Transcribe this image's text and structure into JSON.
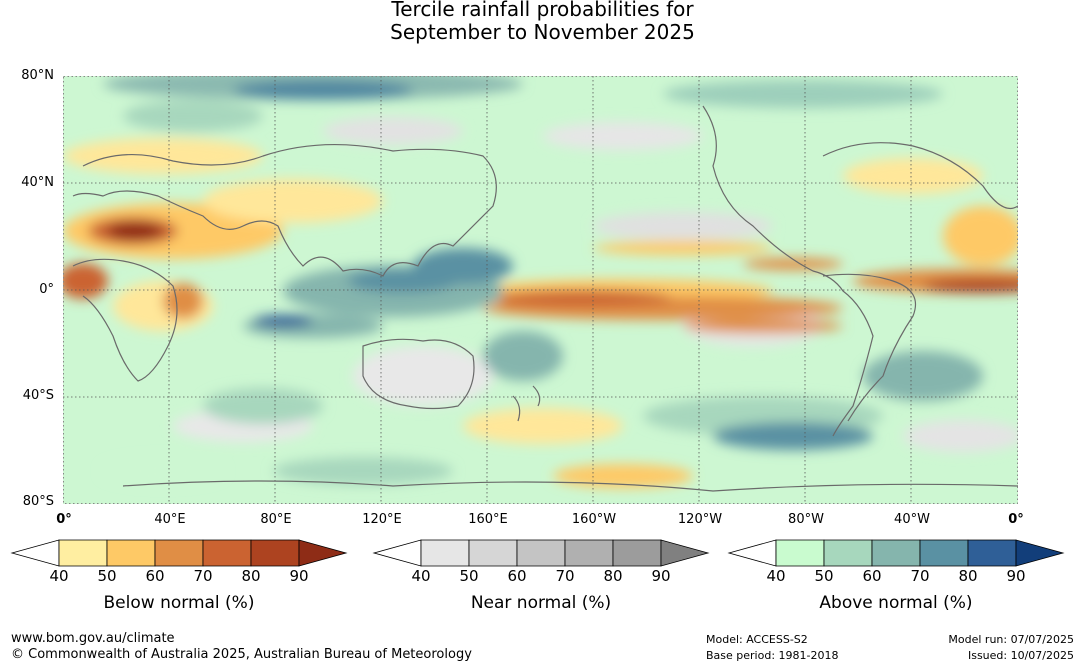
{
  "title": {
    "line1": "Tercile rainfall probabilities for",
    "line2": "September to November 2025"
  },
  "map": {
    "lat_labels": [
      "80°N",
      "40°N",
      "0°",
      "40°S",
      "80°S"
    ],
    "lon_labels": [
      "0°",
      "40°E",
      "80°E",
      "120°E",
      "160°E",
      "160°W",
      "120°W",
      "80°W",
      "40°W",
      "0°"
    ]
  },
  "legends": [
    {
      "title": "Below normal (%)",
      "ticks": [
        "40",
        "50",
        "60",
        "70",
        "80",
        "90"
      ],
      "colors": [
        "#ffffff",
        "#ffeea1",
        "#fec966",
        "#e08e45",
        "#cb6331",
        "#ad4320",
        "#8e2c16"
      ]
    },
    {
      "title": "Near normal (%)",
      "ticks": [
        "40",
        "50",
        "60",
        "70",
        "80",
        "90"
      ],
      "colors": [
        "#ffffff",
        "#e6e6e6",
        "#d6d6d6",
        "#c4c4c4",
        "#b0b0b0",
        "#9c9c9c",
        "#808080"
      ]
    },
    {
      "title": "Above normal (%)",
      "ticks": [
        "40",
        "50",
        "60",
        "70",
        "80",
        "90"
      ],
      "colors": [
        "#ffffff",
        "#c9fbcf",
        "#a7d7bd",
        "#85b5ad",
        "#5a91a3",
        "#2f5f97",
        "#123e7a"
      ]
    }
  ],
  "footer": {
    "website": "www.bom.gov.au/climate",
    "copyright": "© Commonwealth of Australia 2025, Australian Bureau of Meteorology",
    "model": "Model: ACCESS-S2",
    "base_period": "Base period: 1981-2018",
    "model_run": "Model run: 07/07/2025",
    "issued": "Issued: 10/07/2025"
  }
}
